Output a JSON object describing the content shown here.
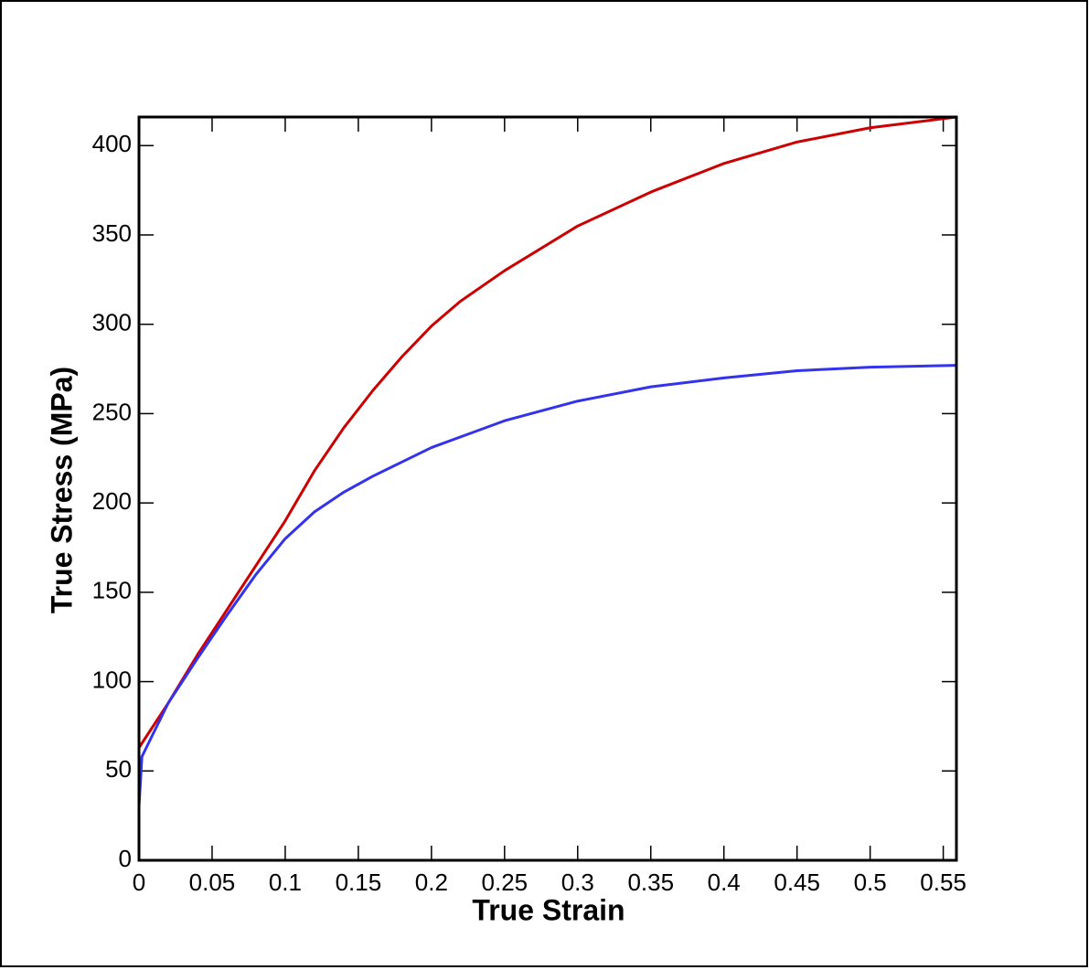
{
  "chart_data": {
    "type": "line",
    "x_label": "True Strain",
    "y_label": "True Stress (MPa)",
    "series": [
      {
        "color": "#cc0000",
        "x": [
          0,
          0.02,
          0.04,
          0.06,
          0.08,
          0.1,
          0.12,
          0.14,
          0.16,
          0.18,
          0.2,
          0.22,
          0.25,
          0.3,
          0.35,
          0.4,
          0.45,
          0.5,
          0.559
        ],
        "values": [
          63,
          88,
          115,
          140,
          165,
          190,
          218,
          242,
          263,
          282,
          299,
          313,
          330,
          355,
          374,
          390,
          402,
          410,
          416
        ]
      },
      {
        "color": "#3333ee",
        "x": [
          0,
          0.002,
          0.02,
          0.04,
          0.06,
          0.08,
          0.1,
          0.12,
          0.14,
          0.16,
          0.18,
          0.2,
          0.25,
          0.3,
          0.35,
          0.4,
          0.45,
          0.5,
          0.559
        ],
        "values": [
          30,
          58,
          88,
          113,
          137,
          160,
          180,
          195,
          206,
          215,
          223,
          231,
          246,
          257,
          265,
          270,
          274,
          276,
          277
        ]
      }
    ],
    "xlim": [
      0,
      0.559
    ],
    "ylim": [
      0,
      416
    ],
    "xticks": [
      0,
      0.05,
      0.1,
      0.15,
      0.2,
      0.25,
      0.3,
      0.35,
      0.4,
      0.45,
      0.5,
      0.55
    ],
    "yticks": [
      0,
      50,
      100,
      150,
      200,
      250,
      300,
      350,
      400
    ]
  }
}
